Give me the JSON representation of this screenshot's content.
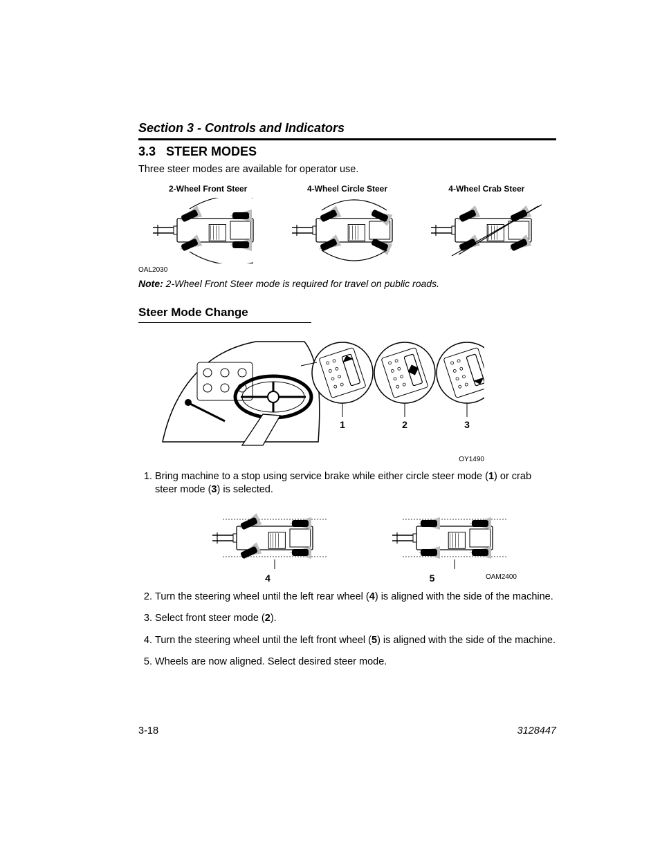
{
  "section_header": "Section 3 - Controls and Indicators",
  "heading": {
    "number": "3.3",
    "title": "STEER MODES"
  },
  "intro_text": "Three steer modes are available for operator use.",
  "steer_modes": [
    {
      "label": "2-Wheel Front Steer",
      "front_angle": -25,
      "rear_angle": 0,
      "arc": "front"
    },
    {
      "label": "4-Wheel Circle Steer",
      "front_angle": -25,
      "rear_angle": 25,
      "arc": "circle"
    },
    {
      "label": "4-Wheel Crab Steer",
      "front_angle": -25,
      "rear_angle": -25,
      "arc": "crab"
    }
  ],
  "fig1_code": "OAL2030",
  "note": {
    "label": "Note:",
    "text": "2-Wheel Front Steer mode is required for travel on public roads."
  },
  "subheading": "Steer Mode Change",
  "cab_fig": {
    "labels": [
      "1",
      "2",
      "3"
    ],
    "code": "OY1490"
  },
  "steps": [
    {
      "pre": "Bring machine to a stop using service brake while either circle steer mode (",
      "b1": "1",
      "mid": ") or crab steer mode (",
      "b2": "3",
      "post": ") is selected."
    },
    {
      "pre": "Turn the steering wheel until the left rear wheel (",
      "b1": "4",
      "mid": ") is aligned with the side of the machine.",
      "b2": "",
      "post": ""
    },
    {
      "pre": "Select front steer mode (",
      "b1": "2",
      "mid": ").",
      "b2": "",
      "post": ""
    },
    {
      "pre": "Turn the steering wheel until the left front wheel (",
      "b1": "5",
      "mid": ") is aligned with the side of the machine.",
      "b2": "",
      "post": ""
    },
    {
      "pre": "Wheels are now aligned. Select desired steer mode.",
      "b1": "",
      "mid": "",
      "b2": "",
      "post": ""
    }
  ],
  "align_figs": [
    {
      "label": "4",
      "front_angle": -25,
      "rear_angle": 0
    },
    {
      "label": "5",
      "front_angle": 0,
      "rear_angle": 0
    }
  ],
  "align_code": "OAM2400",
  "footer": {
    "page": "3-18",
    "docnum": "3128447"
  },
  "colors": {
    "stroke": "#000000",
    "fill_body": "#ffffff",
    "fill_wheel": "#000000",
    "shadow_fill": "#bdbdbd"
  }
}
